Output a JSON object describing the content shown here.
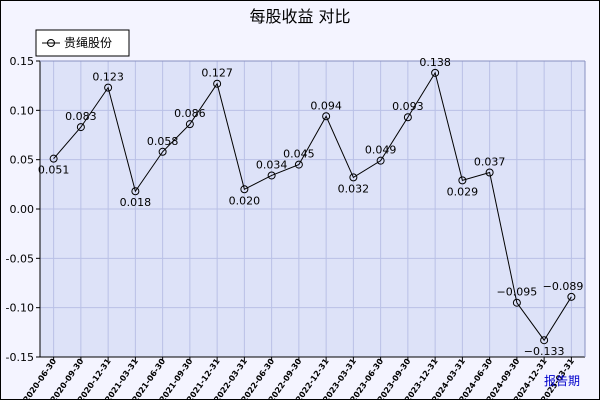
{
  "chart_data": {
    "type": "line",
    "title": "每股收益  对比",
    "xlabel": "",
    "ylabel": "",
    "ylim": [
      -0.15,
      0.15
    ],
    "yticks": [
      0.15,
      0.1,
      0.05,
      0.0,
      -0.05,
      -0.1,
      -0.15
    ],
    "ytick_labels": [
      "0.15",
      "0.10",
      "0.05",
      "0.00",
      "-0.05",
      "-0.10",
      "-0.15"
    ],
    "x": [
      "2020-06-30",
      "2020-09-30",
      "2020-12-31",
      "2021-03-31",
      "2021-06-30",
      "2021-09-30",
      "2021-12-31",
      "2022-03-31",
      "2022-06-30",
      "2022-09-30",
      "2022-12-31",
      "2023-03-31",
      "2023-06-30",
      "2023-09-30",
      "2023-12-31",
      "2024-03-31",
      "2024-06-30",
      "2024-09-30",
      "2024-12-31",
      "2025-03-31"
    ],
    "series": [
      {
        "name": "贵绳股份",
        "values": [
          0.051,
          0.083,
          0.123,
          0.018,
          0.058,
          0.086,
          0.127,
          0.02,
          0.034,
          0.045,
          0.094,
          0.032,
          0.049,
          0.093,
          0.138,
          0.029,
          0.037,
          -0.095,
          -0.133,
          -0.089
        ],
        "labels": [
          "0.051",
          "0.083",
          "0.123",
          "0.018",
          "0.058",
          "0.086",
          "0.127",
          "0.020",
          "0.034",
          "0.045",
          "0.094",
          "0.032",
          "0.049",
          "0.093",
          "0.138",
          "0.029",
          "0.037",
          "−0.095",
          "−0.133",
          "−0.089"
        ],
        "color": "#000000"
      }
    ],
    "grid": true,
    "legend": "top-left",
    "period_label": "报告期",
    "colors": {
      "plot_bg": "#dde2f8",
      "grid": "#b9c0e6",
      "frame_bg": "#f4f4ff"
    }
  }
}
